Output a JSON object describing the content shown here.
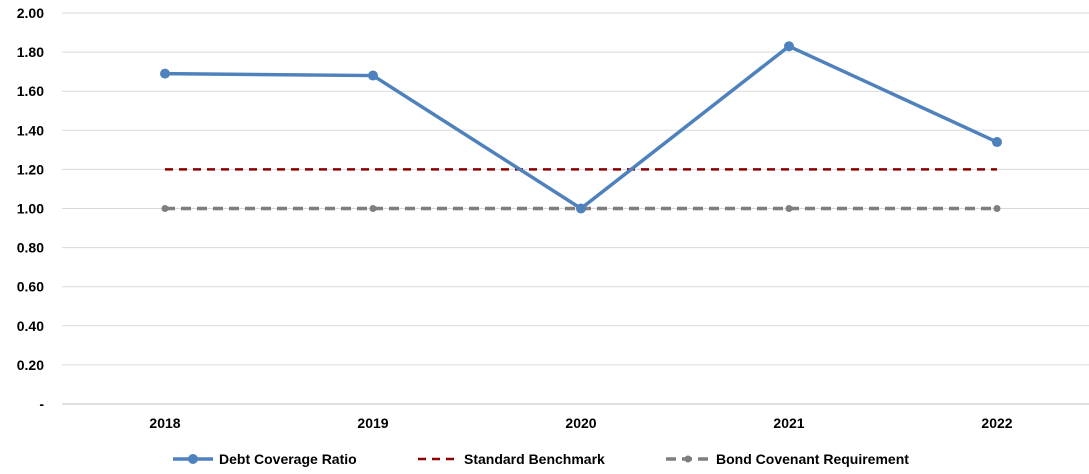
{
  "chart_data": {
    "type": "line",
    "title": "",
    "xlabel": "",
    "ylabel": "",
    "categories": [
      "2018",
      "2019",
      "2020",
      "2021",
      "2022"
    ],
    "ylim": [
      0,
      2.0
    ],
    "y_tick_labels": [
      "-",
      "0.20",
      "0.40",
      "0.60",
      "0.80",
      "1.00",
      "1.20",
      "1.40",
      "1.60",
      "1.80",
      "2.00"
    ],
    "y_tick_values": [
      0,
      0.2,
      0.4,
      0.6,
      0.8,
      1.0,
      1.2,
      1.4,
      1.6,
      1.8,
      2.0
    ],
    "grid": "horizontal",
    "legend_position": "bottom",
    "series": [
      {
        "name": "Debt Coverage Ratio",
        "values": [
          1.69,
          1.68,
          1.0,
          1.83,
          1.34
        ],
        "color": "#4F81BD",
        "style": "solid",
        "markers": true
      },
      {
        "name": "Standard Benchmark",
        "values": [
          1.2,
          1.2,
          1.2,
          1.2,
          1.2
        ],
        "color": "#8B0000",
        "style": "dashed",
        "markers": false
      },
      {
        "name": "Bond Covenant Requirement",
        "values": [
          1.0,
          1.0,
          1.0,
          1.0,
          1.0
        ],
        "color": "#7F7F7F",
        "style": "dashed",
        "markers": true
      }
    ]
  }
}
